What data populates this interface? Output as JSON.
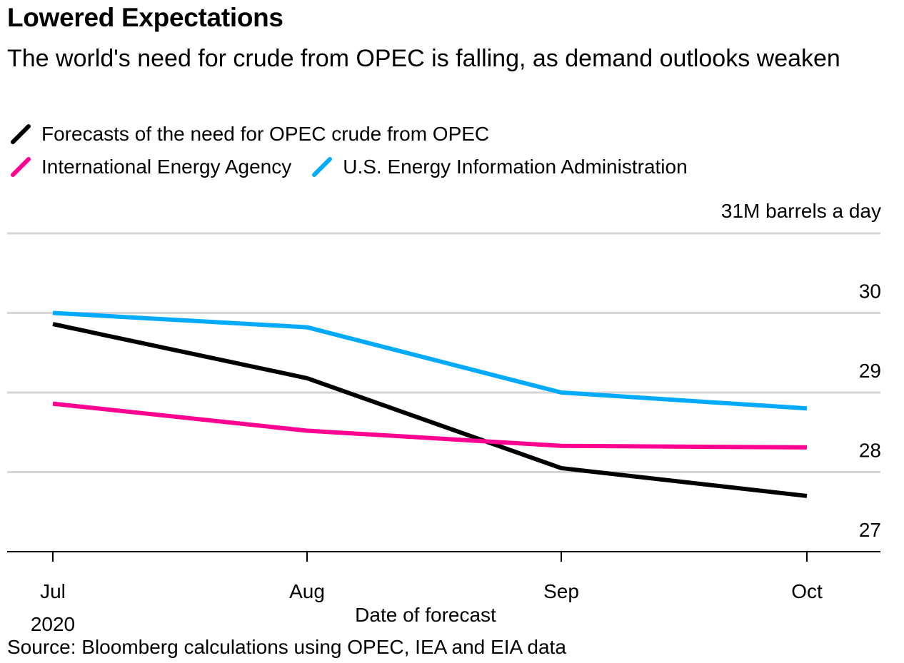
{
  "title": "Lowered Expectations",
  "subtitle": "The world's need for crude from OPEC is falling, as demand outlooks weaken",
  "source": "Source: Bloomberg calculations using OPEC, IEA and EIA data",
  "legend": [
    {
      "label": "Forecasts of the need for OPEC crude from OPEC",
      "color": "#000000"
    },
    {
      "label": "International Energy Agency",
      "color": "#ff0090"
    },
    {
      "label": "U.S. Energy Information Administration",
      "color": "#00aaff"
    }
  ],
  "chart_data": {
    "type": "line",
    "title": "Lowered Expectations",
    "subtitle": "The world's need for crude from OPEC is falling, as demand outlooks weaken",
    "categories": [
      "Jul",
      "Aug",
      "Sep",
      "Oct"
    ],
    "category_sublabel": "2020",
    "xlabel": "Date of forecast",
    "ylabel": "",
    "y_unit_label": "31M barrels a day",
    "y_ticks": [
      27,
      28,
      29,
      30,
      31
    ],
    "y_tick_labels": [
      "27",
      "28",
      "29",
      "30",
      "31M barrels a day"
    ],
    "ylim": [
      27,
      31
    ],
    "grid": true,
    "legend_position": "top-left",
    "series": [
      {
        "name": "Forecasts of the need for OPEC crude from OPEC",
        "color": "#000000",
        "values": [
          29.86,
          29.18,
          28.05,
          27.7
        ]
      },
      {
        "name": "International Energy Agency",
        "color": "#ff0090",
        "values": [
          28.86,
          28.52,
          28.33,
          28.31
        ]
      },
      {
        "name": "U.S. Energy Information Administration",
        "color": "#00aaff",
        "values": [
          30.0,
          29.82,
          29.0,
          28.8
        ]
      }
    ]
  }
}
